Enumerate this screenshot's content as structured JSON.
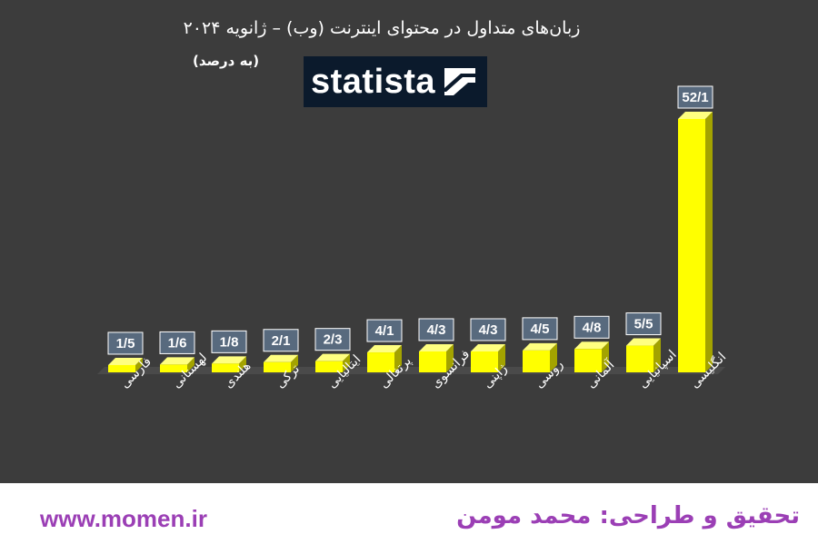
{
  "chart_data": {
    "type": "bar",
    "title": "زبان‌های متداول در محتوای اینترنت (وب) – ژانویه ۲۰۲۴",
    "subtitle": "(به درصد)",
    "categories": [
      "فارسی",
      "لهستانی",
      "هلندی",
      "ترکی",
      "ایتالیایی",
      "پرتغالی",
      "فرانسوی",
      "ژاپنی",
      "روسی",
      "آلمانی",
      "اسپانیایی",
      "انگلیسی"
    ],
    "values": [
      1.5,
      1.6,
      1.8,
      2.1,
      2.3,
      4.1,
      4.3,
      4.3,
      4.5,
      4.8,
      5.5,
      52.1
    ],
    "data_labels": [
      "1/5",
      "1/6",
      "1/8",
      "2/1",
      "2/3",
      "4/1",
      "4/3",
      "4/3",
      "4/5",
      "4/8",
      "5/5",
      "52/1"
    ],
    "ylim": [
      0,
      55
    ],
    "grid": false,
    "legend": "none",
    "bar_color": "#ffff00",
    "bar_side_color": "#a3a300",
    "bar_top_color": "#ffff80",
    "label_box_color": "#586a7e",
    "background_color": "#3c3c3c"
  },
  "logo": {
    "text": "statista"
  },
  "footer": {
    "url": "www.momen.ir",
    "credit": "تحقیق و طراحی: محمد مومن",
    "color": "#9b3fb5"
  }
}
